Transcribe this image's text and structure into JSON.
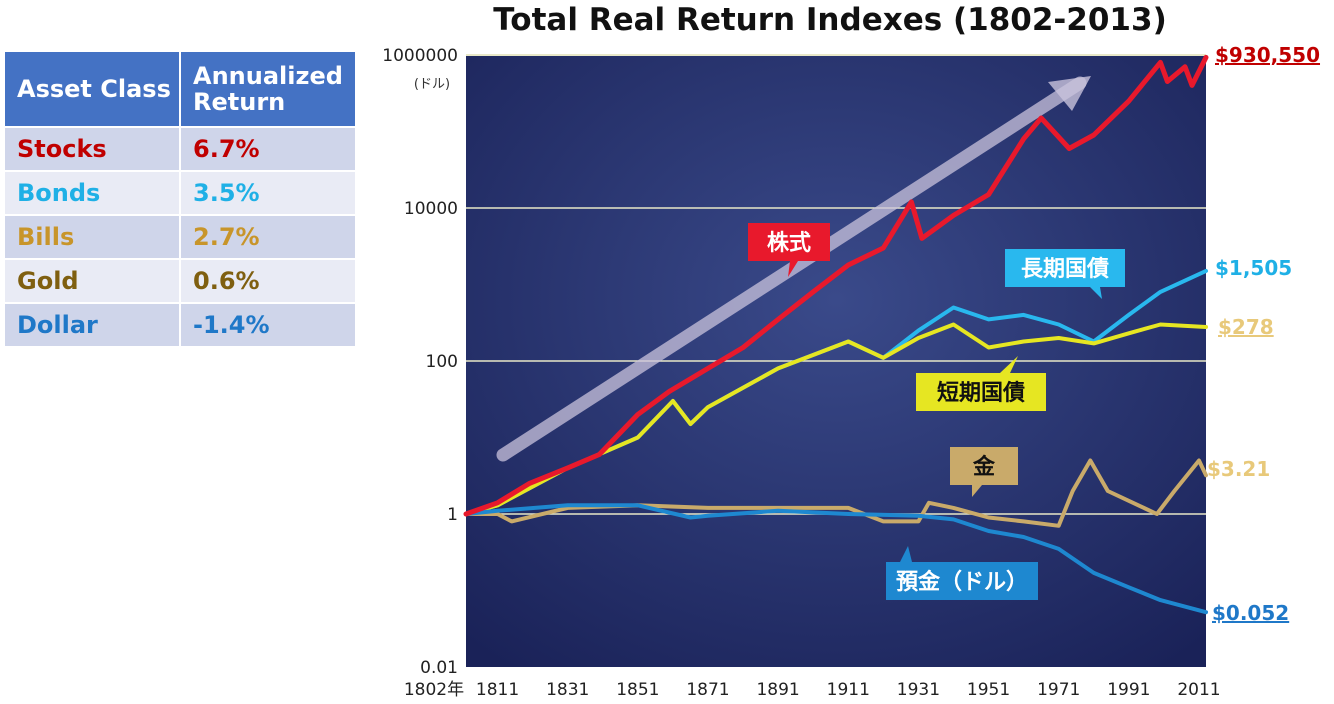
{
  "table": {
    "headers": [
      "Asset Class",
      "Annualized Return"
    ],
    "rows": [
      {
        "asset": "Stocks",
        "ret": "6.7%",
        "color": "#c00000"
      },
      {
        "asset": "Bonds",
        "ret": "3.5%",
        "color": "#1fb0e6"
      },
      {
        "asset": "Bills",
        "ret": "2.7%",
        "color": "#c8952a"
      },
      {
        "asset": "Gold",
        "ret": "0.6%",
        "color": "#7f5f10"
      },
      {
        "asset": "Dollar",
        "ret": "-1.4%",
        "color": "#1f78c8"
      }
    ]
  },
  "chart_data": {
    "type": "line",
    "title": "Total Real Return Indexes (1802-2013)",
    "yscale": "log",
    "ylim": [
      0.01,
      1000000
    ],
    "yticks": [
      0.01,
      1,
      100,
      10000,
      1000000
    ],
    "ytick_labels": [
      "0.01",
      "1",
      "100",
      "10000",
      "1000000"
    ],
    "yunit": "(ドル)",
    "xlim": [
      1802,
      2013
    ],
    "xticks": [
      1802,
      1811,
      1831,
      1851,
      1871,
      1891,
      1911,
      1931,
      1951,
      1971,
      1991,
      2011
    ],
    "xtick_labels": [
      "1802年",
      "1811",
      "1831",
      "1851",
      "1871",
      "1891",
      "1911",
      "1931",
      "1951",
      "1971",
      "1991",
      "2011"
    ],
    "series": [
      {
        "name": "株式",
        "color": "#e8192c",
        "end_label": "$930,550",
        "end_color": "#c00000",
        "x": [
          1802,
          1811,
          1820,
          1831,
          1840,
          1851,
          1860,
          1871,
          1881,
          1891,
          1901,
          1911,
          1921,
          1929,
          1932,
          1941,
          1951,
          1961,
          1966,
          1974,
          1981,
          1991,
          2000,
          2002,
          2007,
          2009,
          2013
        ],
        "y": [
          1,
          1.4,
          2.5,
          4,
          6,
          20,
          40,
          80,
          150,
          350,
          800,
          1800,
          3000,
          12000,
          4000,
          8000,
          15000,
          80000,
          150000,
          60000,
          90000,
          250000,
          800000,
          450000,
          700000,
          400000,
          930550
        ]
      },
      {
        "name": "長期国債",
        "color": "#29b8ee",
        "end_label": "$1,505",
        "end_color": "#1fb0e6",
        "x": [
          1802,
          1811,
          1831,
          1851,
          1861,
          1866,
          1871,
          1891,
          1911,
          1921,
          1931,
          1941,
          1951,
          1961,
          1971,
          1981,
          1991,
          2000,
          2013
        ],
        "y": [
          1,
          1.3,
          4,
          10,
          30,
          15,
          25,
          80,
          180,
          110,
          250,
          500,
          350,
          400,
          300,
          180,
          400,
          800,
          1505
        ]
      },
      {
        "name": "短期国債",
        "color": "#e6e622",
        "end_label": "$278",
        "end_color": "#e8c97a",
        "x": [
          1802,
          1811,
          1831,
          1851,
          1861,
          1866,
          1871,
          1891,
          1911,
          1921,
          1931,
          1941,
          1951,
          1961,
          1971,
          1981,
          1991,
          2000,
          2013
        ],
        "y": [
          1,
          1.3,
          4,
          10,
          30,
          15,
          25,
          80,
          180,
          110,
          200,
          300,
          150,
          180,
          200,
          170,
          230,
          300,
          278
        ]
      },
      {
        "name": "金",
        "color": "#c9aa6a",
        "end_label": "$3.21",
        "end_color": "#e8c97a",
        "x": [
          1802,
          1811,
          1815,
          1831,
          1851,
          1871,
          1891,
          1911,
          1921,
          1931,
          1934,
          1941,
          1951,
          1961,
          1971,
          1975,
          1980,
          1985,
          1999,
          2004,
          2011,
          2013
        ],
        "y": [
          1,
          1,
          0.8,
          1.2,
          1.3,
          1.2,
          1.2,
          1.2,
          0.8,
          0.8,
          1.4,
          1.2,
          0.9,
          0.8,
          0.7,
          2,
          5,
          2,
          1,
          2,
          5,
          3.21
        ]
      },
      {
        "name": "預金（ドル）",
        "color": "#1e88d0",
        "end_label": "$0.052",
        "end_color": "#1f78c8",
        "x": [
          1802,
          1811,
          1831,
          1851,
          1866,
          1871,
          1891,
          1911,
          1931,
          1941,
          1951,
          1961,
          1971,
          1981,
          1991,
          2000,
          2013
        ],
        "y": [
          1,
          1.1,
          1.3,
          1.3,
          0.9,
          0.95,
          1.1,
          1.0,
          0.95,
          0.85,
          0.6,
          0.5,
          0.35,
          0.17,
          0.11,
          0.075,
          0.052
        ]
      }
    ]
  }
}
